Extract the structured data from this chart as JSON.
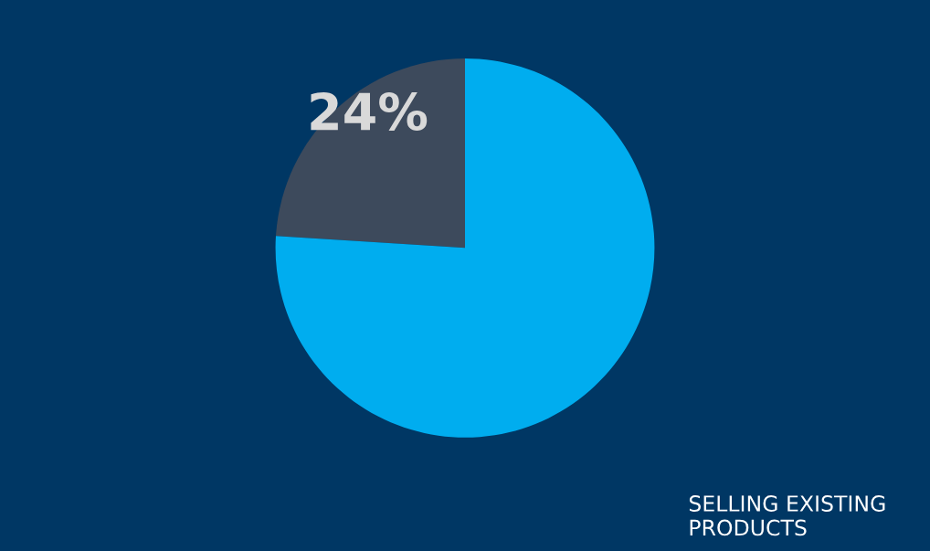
{
  "chart_data": {
    "type": "pie",
    "categories": [
      null,
      "SELLING EXISTING PRODUCTS"
    ],
    "values": [
      24,
      76
    ],
    "colors": [
      "#3d4a5c",
      "#00adef"
    ],
    "value_labels": [
      "24%",
      null
    ],
    "legend": false
  }
}
